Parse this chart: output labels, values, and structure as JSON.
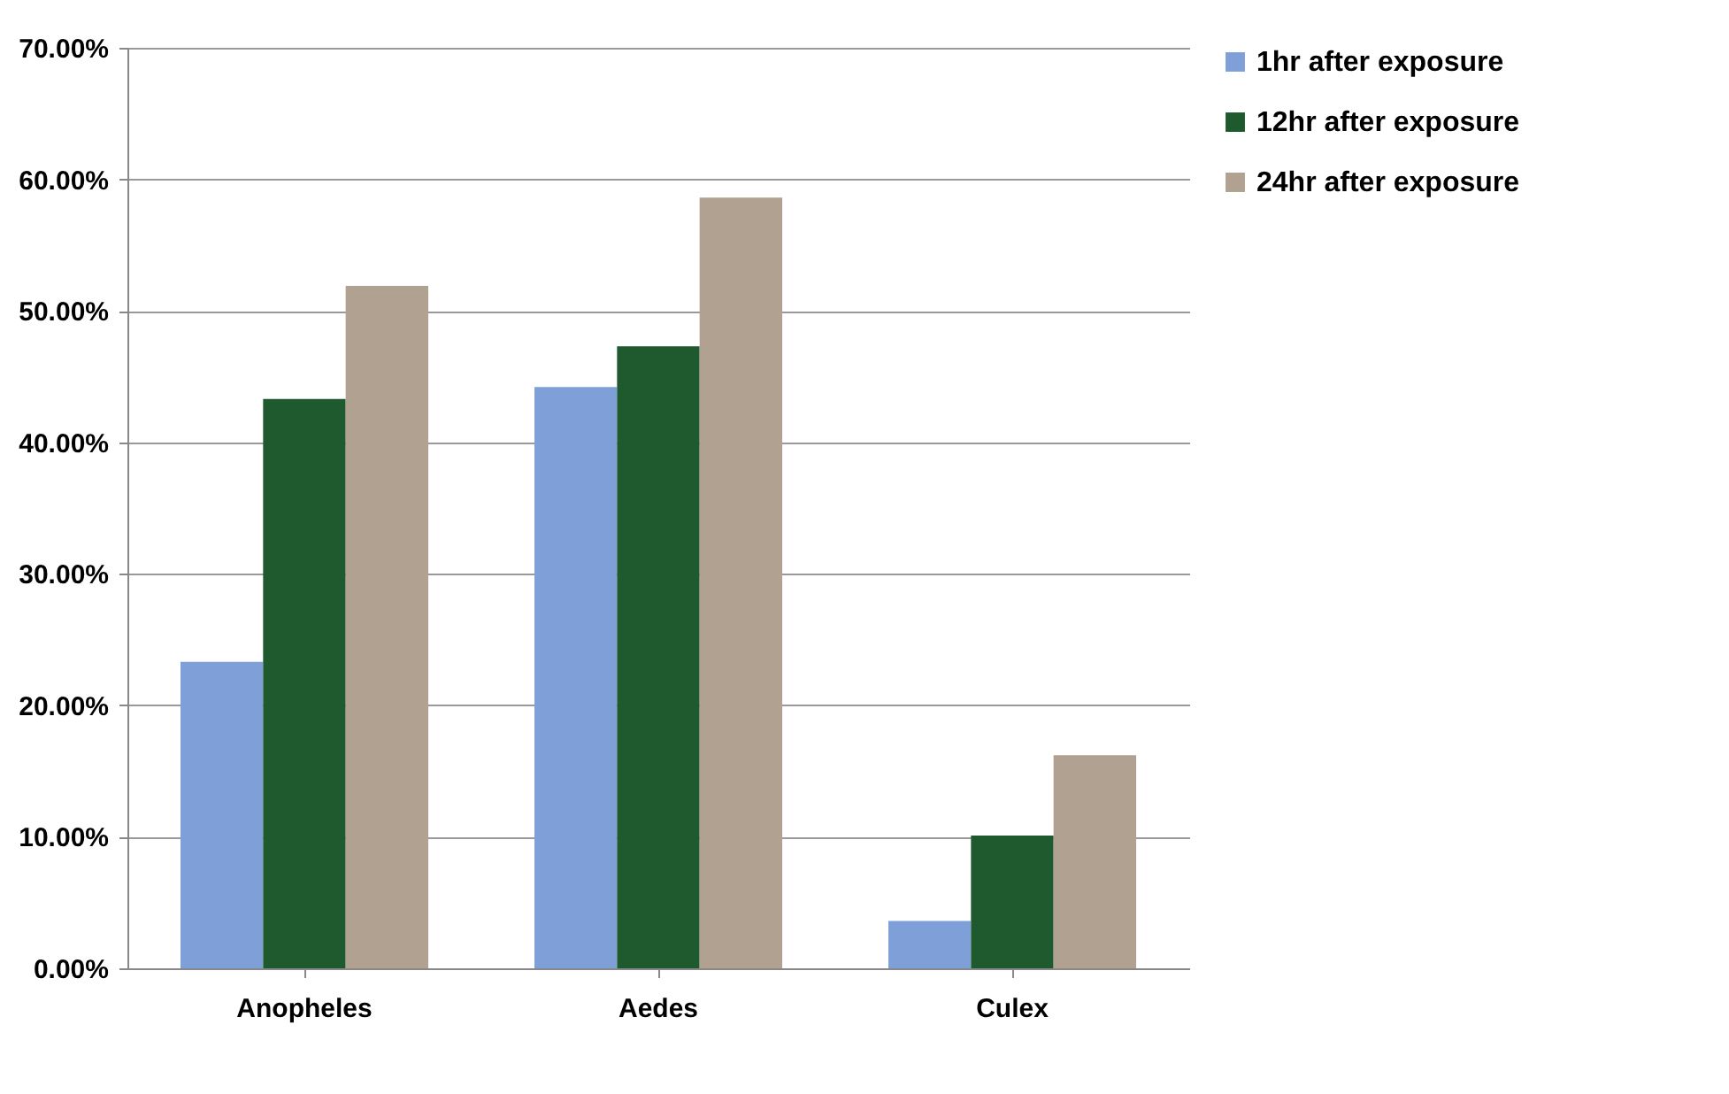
{
  "chart_data": {
    "type": "bar",
    "categories": [
      "Anopheles",
      "Aedes",
      "Culex"
    ],
    "series": [
      {
        "name": "1hr after exposure",
        "color": "#7f9fd8",
        "values": [
          23.3,
          44.2,
          3.6
        ]
      },
      {
        "name": "12hr after exposure",
        "color": "#1f5a2e",
        "values": [
          43.3,
          47.3,
          10.1
        ]
      },
      {
        "name": "24hr after exposure",
        "color": "#b0a190",
        "values": [
          51.9,
          58.6,
          16.2
        ]
      }
    ],
    "ylim": [
      0,
      70
    ],
    "yticks": [
      {
        "value": 0,
        "label": "0.00%"
      },
      {
        "value": 10,
        "label": "10.00%"
      },
      {
        "value": 20,
        "label": "20.00%"
      },
      {
        "value": 30,
        "label": "30.00%"
      },
      {
        "value": 40,
        "label": "40.00%"
      },
      {
        "value": 50,
        "label": "50.00%"
      },
      {
        "value": 60,
        "label": "60.00%"
      },
      {
        "value": 70,
        "label": "70.00%"
      }
    ],
    "grid": "y",
    "legend": "right"
  }
}
